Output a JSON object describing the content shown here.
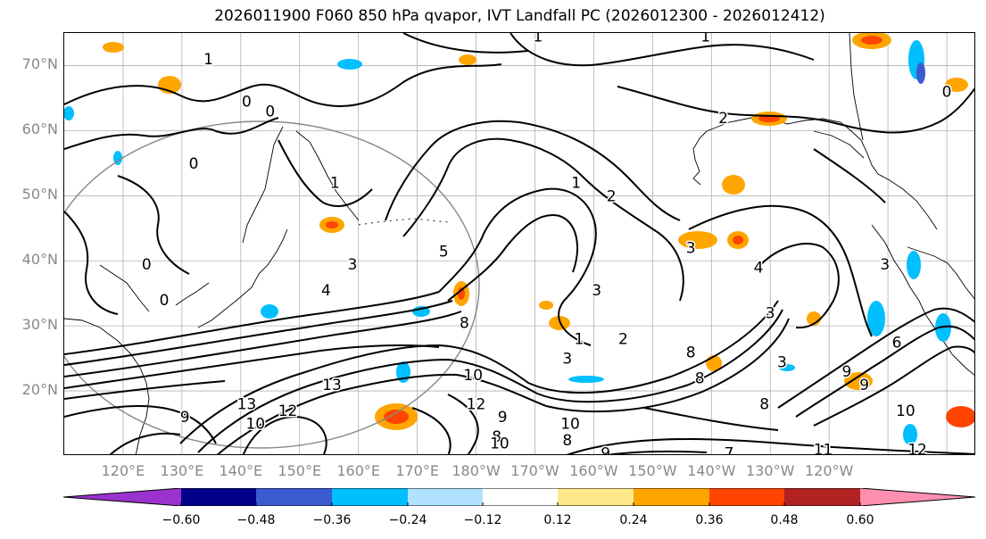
{
  "title": "2026011900 F060 850 hPa qvapor, IVT Landfall PC (2026012300 - 2026012412)",
  "lat_labels": [
    "70°N",
    "60°N",
    "50°N",
    "40°N",
    "30°N",
    "20°N"
  ],
  "lon_labels": [
    "120°E",
    "130°E",
    "140°E",
    "150°E",
    "160°E",
    "170°E",
    "180°W",
    "170°W",
    "160°W",
    "150°W",
    "140°W",
    "130°W",
    "120°W"
  ],
  "colorbar": {
    "colors": [
      "#9a32cd",
      "#00008b",
      "#3a5bd0",
      "#00bfff",
      "#b0e2ff",
      "#ffffff",
      "#ffe88a",
      "#ffa500",
      "#ff4500",
      "#b22222",
      "#ff8fb0"
    ],
    "tick_labels": [
      "−0.60",
      "−0.48",
      "−0.36",
      "−0.24",
      "−0.12",
      "0.12",
      "0.24",
      "0.36",
      "0.48",
      "0.60"
    ],
    "extend": "both"
  },
  "contour_labels": [
    {
      "text": "1",
      "lon": 190.5,
      "lat": 74.5
    },
    {
      "text": "1",
      "lon": 134.5,
      "lat": 71.0
    },
    {
      "text": "0",
      "lon": 141,
      "lat": 64.5
    },
    {
      "text": "0",
      "lon": 145,
      "lat": 63
    },
    {
      "text": "1",
      "lon": 156,
      "lat": 52
    },
    {
      "text": "0",
      "lon": 132,
      "lat": 55
    },
    {
      "text": "3",
      "lon": 159,
      "lat": 39.5
    },
    {
      "text": "4",
      "lon": 154.5,
      "lat": 35.5
    },
    {
      "text": "5",
      "lon": 174.5,
      "lat": 41.5
    },
    {
      "text": "8",
      "lon": 178,
      "lat": 30.5
    },
    {
      "text": "10",
      "lon": 179.5,
      "lat": 22.5
    },
    {
      "text": "12",
      "lon": 180,
      "lat": 18
    },
    {
      "text": "13",
      "lon": 155.5,
      "lat": 21
    },
    {
      "text": "12",
      "lon": 148,
      "lat": 17
    },
    {
      "text": "13",
      "lon": 141,
      "lat": 18
    },
    {
      "text": "9",
      "lon": 130.5,
      "lat": 16
    },
    {
      "text": "10",
      "lon": 142.5,
      "lat": 15
    },
    {
      "text": "9",
      "lon": 184.5,
      "lat": 16
    },
    {
      "text": "8",
      "lon": 183.5,
      "lat": 13
    },
    {
      "text": "10",
      "lon": 184,
      "lat": 12
    },
    {
      "text": "8",
      "lon": 195.5,
      "lat": 12.5
    },
    {
      "text": "10",
      "lon": 196,
      "lat": 15
    },
    {
      "text": "9",
      "lon": 202,
      "lat": 10.5
    },
    {
      "text": "7",
      "lon": 223,
      "lat": 10.5
    },
    {
      "text": "11",
      "lon": 239,
      "lat": 11
    },
    {
      "text": "12",
      "lon": 255,
      "lat": 11
    },
    {
      "text": "1",
      "lon": 197.5,
      "lat": 28
    },
    {
      "text": "3",
      "lon": 195.5,
      "lat": 25
    },
    {
      "text": "3",
      "lon": 200.5,
      "lat": 35.5
    },
    {
      "text": "1",
      "lon": 197,
      "lat": 52
    },
    {
      "text": "2",
      "lon": 203,
      "lat": 50
    },
    {
      "text": "3",
      "lon": 216.5,
      "lat": 42
    },
    {
      "text": "4",
      "lon": 228,
      "lat": 39
    },
    {
      "text": "3",
      "lon": 232,
      "lat": 24.5
    },
    {
      "text": "9",
      "lon": 243,
      "lat": 23
    },
    {
      "text": "9",
      "lon": 246,
      "lat": 21
    },
    {
      "text": "8",
      "lon": 229,
      "lat": 18
    },
    {
      "text": "6",
      "lon": 251.5,
      "lat": 27.5
    },
    {
      "text": "8",
      "lon": 216.5,
      "lat": 26
    },
    {
      "text": "8",
      "lon": 218,
      "lat": 22
    },
    {
      "text": "10",
      "lon": 253,
      "lat": 17
    },
    {
      "text": "2",
      "lon": 205,
      "lat": 28
    },
    {
      "text": "3",
      "lon": 249.5,
      "lat": 39.5
    },
    {
      "text": "1",
      "lon": 219,
      "lat": 74.5
    },
    {
      "text": "0",
      "lon": 260,
      "lat": 66
    },
    {
      "text": "3",
      "lon": 230,
      "lat": 32
    },
    {
      "text": "2",
      "lon": 222,
      "lat": 62
    },
    {
      "text": "0",
      "lon": 124,
      "lat": 39.5
    },
    {
      "text": "0",
      "lon": 127,
      "lat": 34
    }
  ]
}
